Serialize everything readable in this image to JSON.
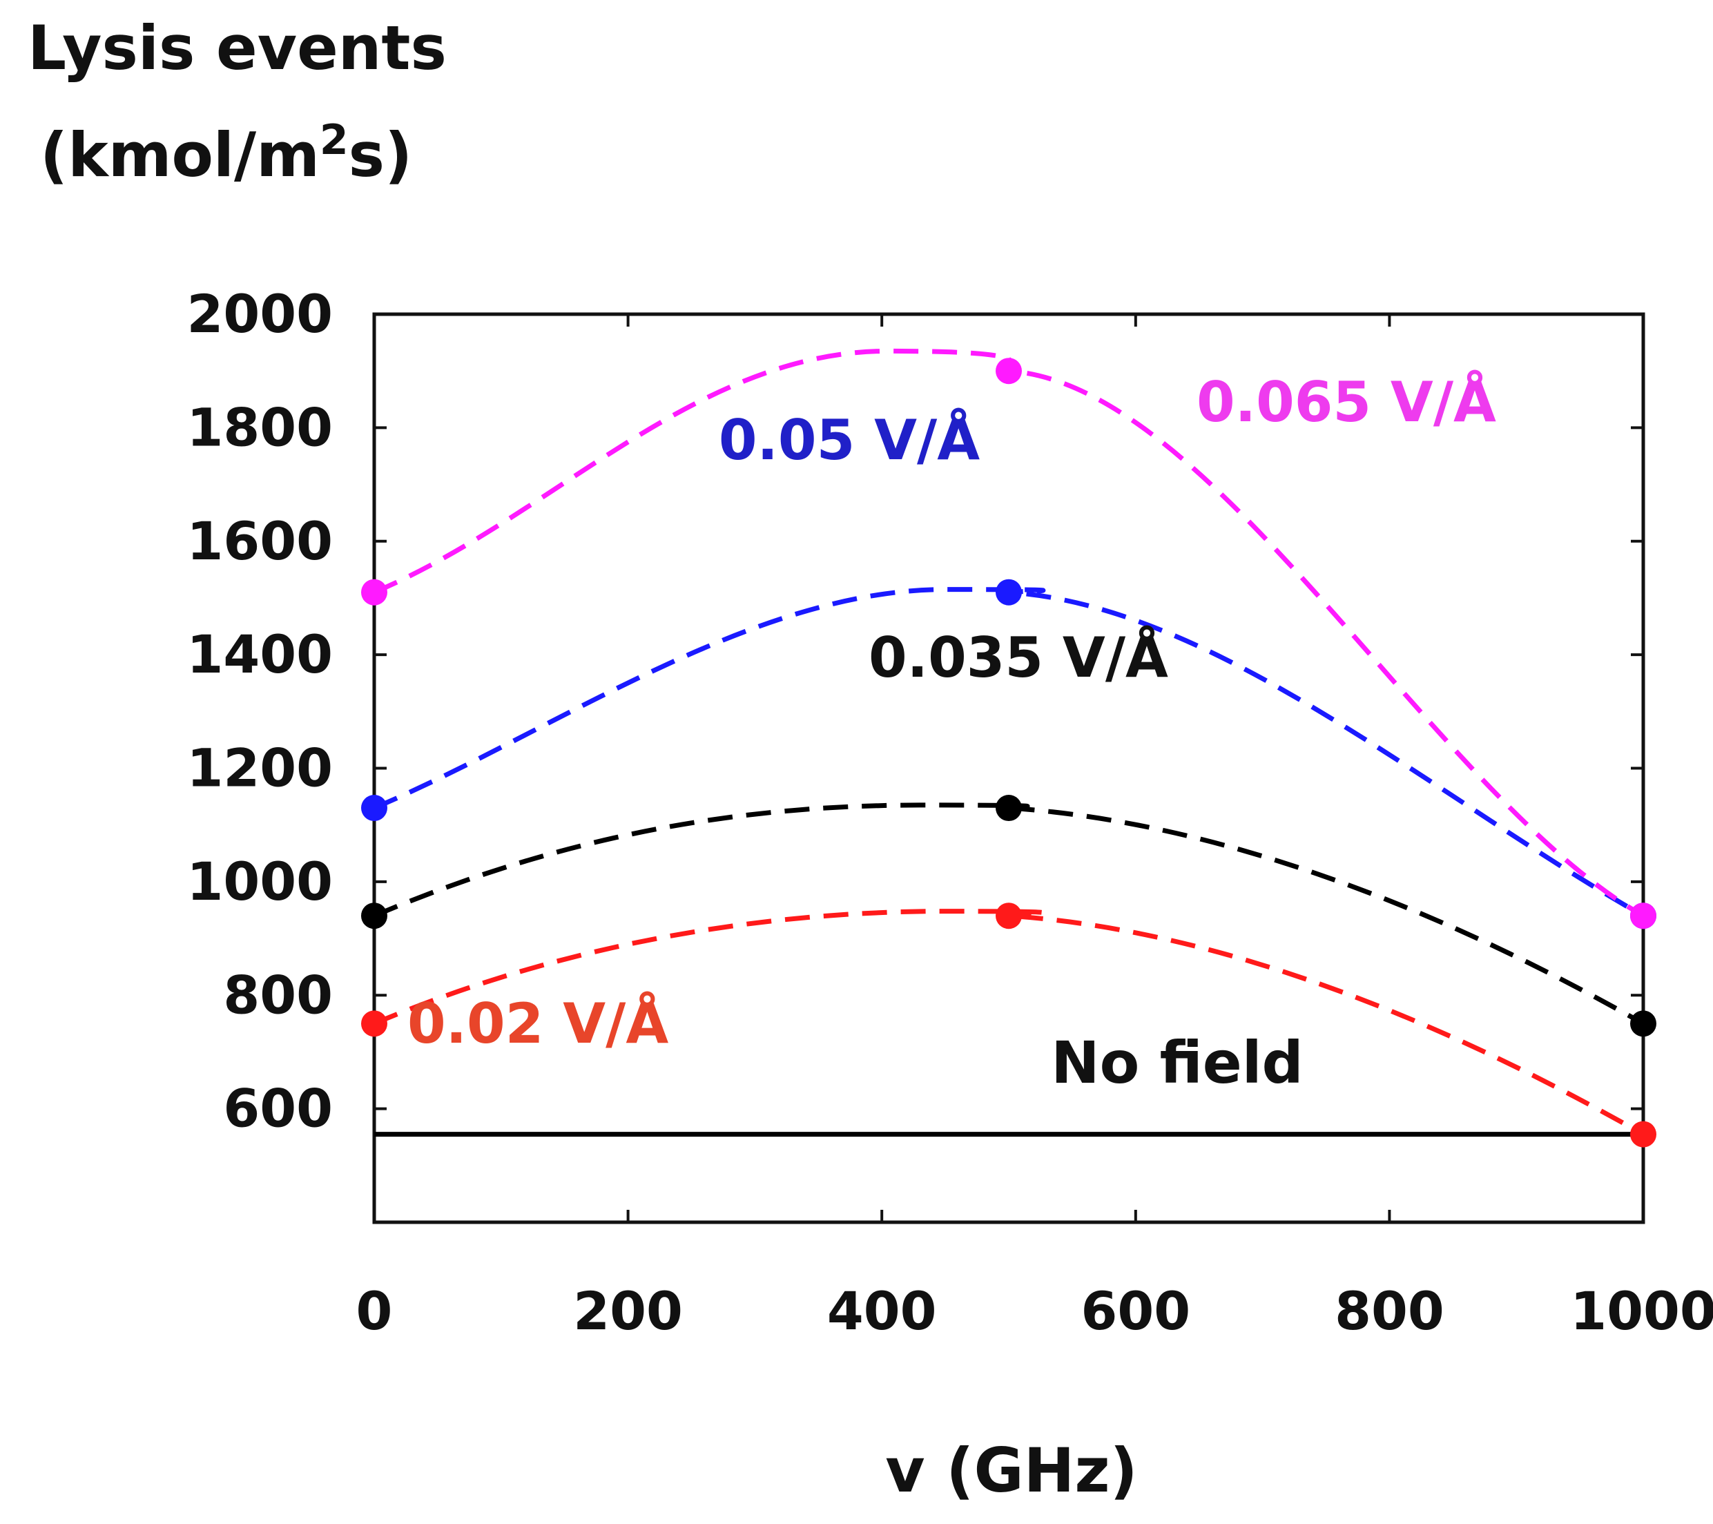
{
  "chart_data": {
    "type": "line",
    "ylabel_line1": "Lysis events",
    "ylabel_line2_prefix": "(kmol/m",
    "ylabel_sup": "2",
    "ylabel_line2_suffix": "s)",
    "xlabel": "v (GHz)",
    "xlim": [
      0,
      1000
    ],
    "ylim": [
      400,
      2000
    ],
    "xticks": [
      0,
      200,
      400,
      600,
      800,
      1000
    ],
    "xtick_labels": [
      "0",
      "200",
      "400",
      "600",
      "800",
      "1000"
    ],
    "yticks": [
      600,
      800,
      1000,
      1200,
      1400,
      1600,
      1800,
      2000
    ],
    "ytick_labels": [
      "600",
      "800",
      "1000",
      "1200",
      "1400",
      "1600",
      "1800",
      "2000"
    ],
    "x": [
      0,
      500,
      1000
    ],
    "baseline": {
      "name": "No field",
      "label": "No field",
      "value": 555,
      "color": "#000000"
    },
    "series": [
      {
        "name": "0.02 V/Å",
        "label": "0.02 V/Å",
        "color": "#ff1a1a",
        "label_color": "#e8452a",
        "values": [
          750,
          940,
          555
        ],
        "peak": [
          450,
          948
        ]
      },
      {
        "name": "0.035 V/Å",
        "label": "0.035 V/Å",
        "color": "#000000",
        "label_color": "#111111",
        "values": [
          940,
          1130,
          750
        ],
        "peak": [
          430,
          1135
        ]
      },
      {
        "name": "0.05 V/Å",
        "label": "0.05 V/Å",
        "color": "#1a1aff",
        "label_color": "#2020c8",
        "values": [
          1130,
          1510,
          940
        ],
        "peak": [
          450,
          1515
        ]
      },
      {
        "name": "0.065 V/Å",
        "label": "0.065 V/Å",
        "color": "#ff1aff",
        "label_color": "#ee3bee",
        "values": [
          1510,
          1900,
          940
        ],
        "peak": [
          405,
          1935
        ]
      }
    ]
  }
}
